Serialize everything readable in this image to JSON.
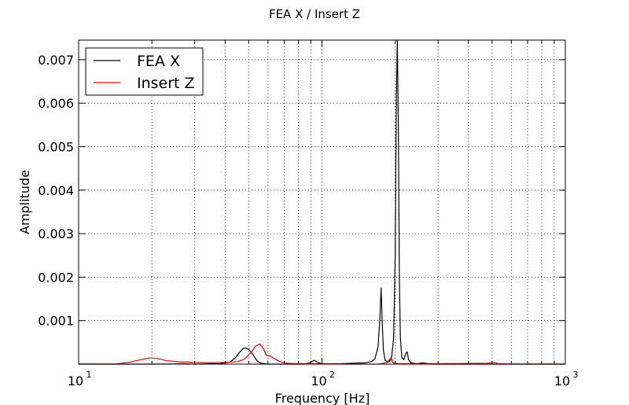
{
  "chart_data": {
    "type": "line",
    "title": "FEA X / Insert Z",
    "xlabel": "Frequency [Hz]",
    "ylabel": "Amplitude",
    "xscale": "log",
    "xlim": [
      10,
      1000
    ],
    "ylim": [
      0,
      0.00745
    ],
    "x_ticks": [
      {
        "base": "10",
        "exp": "1",
        "value": 10
      },
      {
        "base": "10",
        "exp": "2",
        "value": 100
      },
      {
        "base": "10",
        "exp": "3",
        "value": 1000
      }
    ],
    "y_ticks": [
      {
        "label": "0.001",
        "value": 0.001
      },
      {
        "label": "0.002",
        "value": 0.002
      },
      {
        "label": "0.003",
        "value": 0.003
      },
      {
        "label": "0.004",
        "value": 0.004
      },
      {
        "label": "0.005",
        "value": 0.005
      },
      {
        "label": "0.006",
        "value": 0.006
      },
      {
        "label": "0.007",
        "value": 0.007
      }
    ],
    "grid": true,
    "legend_position": "top-left",
    "series": [
      {
        "name": "FEA X",
        "color": "#000000",
        "points": [
          [
            10,
            0.0
          ],
          [
            20,
            0.0
          ],
          [
            28,
            5e-06
          ],
          [
            30,
            0.0
          ],
          [
            38,
            1e-05
          ],
          [
            42,
            5e-05
          ],
          [
            44,
            0.00014
          ],
          [
            46,
            0.00028
          ],
          [
            47.5,
            0.00036
          ],
          [
            48.5,
            0.00037
          ],
          [
            50,
            0.00034
          ],
          [
            52,
            0.00022
          ],
          [
            54,
            8e-05
          ],
          [
            56,
            2e-05
          ],
          [
            60,
            0.0
          ],
          [
            85,
            0.0
          ],
          [
            90,
            4e-05
          ],
          [
            93,
            9e-05
          ],
          [
            96,
            4e-05
          ],
          [
            100,
            1e-05
          ],
          [
            120,
            1e-05
          ],
          [
            150,
            3e-05
          ],
          [
            160,
            6e-05
          ],
          [
            165,
            0.00012
          ],
          [
            170,
            0.0004
          ],
          [
            173,
            0.00105
          ],
          [
            175,
            0.00175
          ],
          [
            177,
            0.0009
          ],
          [
            179,
            0.0003
          ],
          [
            182,
            8e-05
          ],
          [
            188,
            5e-05
          ],
          [
            193,
            0.00012
          ],
          [
            197,
            0.0006
          ],
          [
            200,
            0.0025
          ],
          [
            202,
            0.006
          ],
          [
            204,
            0.00745
          ],
          [
            206,
            0.0055
          ],
          [
            208,
            0.002
          ],
          [
            210,
            0.0006
          ],
          [
            213,
            0.00015
          ],
          [
            217,
            0.0001
          ],
          [
            221,
            0.00025
          ],
          [
            224,
            0.00028
          ],
          [
            227,
            0.0001
          ],
          [
            232,
            3e-05
          ],
          [
            245,
            1e-05
          ],
          [
            260,
            3e-05
          ],
          [
            280,
            0.0
          ],
          [
            1000,
            0.0
          ]
        ]
      },
      {
        "name": "Insert Z",
        "color": "#ff0000",
        "points": [
          [
            10,
            0.0
          ],
          [
            14,
            0.0
          ],
          [
            16,
            4e-05
          ],
          [
            18,
            0.0001
          ],
          [
            19.5,
            0.00014
          ],
          [
            21,
            0.00013
          ],
          [
            23,
            8e-05
          ],
          [
            26,
            5e-05
          ],
          [
            28,
            5e-05
          ],
          [
            30,
            4e-05
          ],
          [
            35,
            3e-05
          ],
          [
            40,
            4e-05
          ],
          [
            45,
            6e-05
          ],
          [
            48,
            0.00011
          ],
          [
            51,
            0.00026
          ],
          [
            53.5,
            0.00042
          ],
          [
            55.5,
            0.00046
          ],
          [
            57.5,
            0.00036
          ],
          [
            59,
            0.00021
          ],
          [
            61,
            0.00019
          ],
          [
            63,
            0.00014
          ],
          [
            67,
            6e-05
          ],
          [
            72,
            2e-05
          ],
          [
            80,
            1e-05
          ],
          [
            100,
            1e-05
          ],
          [
            130,
            0.0
          ],
          [
            170,
            0.0
          ],
          [
            185,
            3e-05
          ],
          [
            192,
            0.00015
          ],
          [
            196,
            3e-05
          ],
          [
            205,
            1e-05
          ],
          [
            300,
            1e-05
          ],
          [
            480,
            2e-05
          ],
          [
            510,
            4e-05
          ],
          [
            530,
            1e-05
          ],
          [
            600,
            0.0
          ],
          [
            1000,
            0.0
          ]
        ]
      }
    ]
  }
}
